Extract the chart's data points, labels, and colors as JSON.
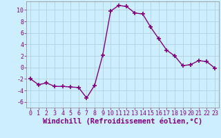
{
  "x": [
    0,
    1,
    2,
    3,
    4,
    5,
    6,
    7,
    8,
    9,
    10,
    11,
    12,
    13,
    14,
    15,
    16,
    17,
    18,
    19,
    20,
    21,
    22,
    23
  ],
  "y": [
    -2,
    -3,
    -2.7,
    -3.3,
    -3.3,
    -3.4,
    -3.5,
    -5.3,
    -3.1,
    2.1,
    9.8,
    10.8,
    10.6,
    9.5,
    9.3,
    7.0,
    5.0,
    3.0,
    2.0,
    0.3,
    0.5,
    1.2,
    1.0,
    -0.1
  ],
  "line_color": "#800080",
  "marker": "+",
  "marker_size": 5,
  "marker_lw": 1.2,
  "background_color": "#cceeff",
  "grid_color": "#aaccdd",
  "xlabel": "Windchill (Refroidissement éolien,°C)",
  "xlabel_fontsize": 7.5,
  "xlabel_color": "#800080",
  "tick_color": "#800080",
  "tick_fontsize": 6,
  "ylim": [
    -7,
    11.5
  ],
  "yticks": [
    -6,
    -4,
    -2,
    0,
    2,
    4,
    6,
    8,
    10
  ],
  "xlim": [
    -0.5,
    23.5
  ],
  "xticks": [
    0,
    1,
    2,
    3,
    4,
    5,
    6,
    7,
    8,
    9,
    10,
    11,
    12,
    13,
    14,
    15,
    16,
    17,
    18,
    19,
    20,
    21,
    22,
    23
  ],
  "linewidth": 1.0,
  "spine_color": "#888888"
}
